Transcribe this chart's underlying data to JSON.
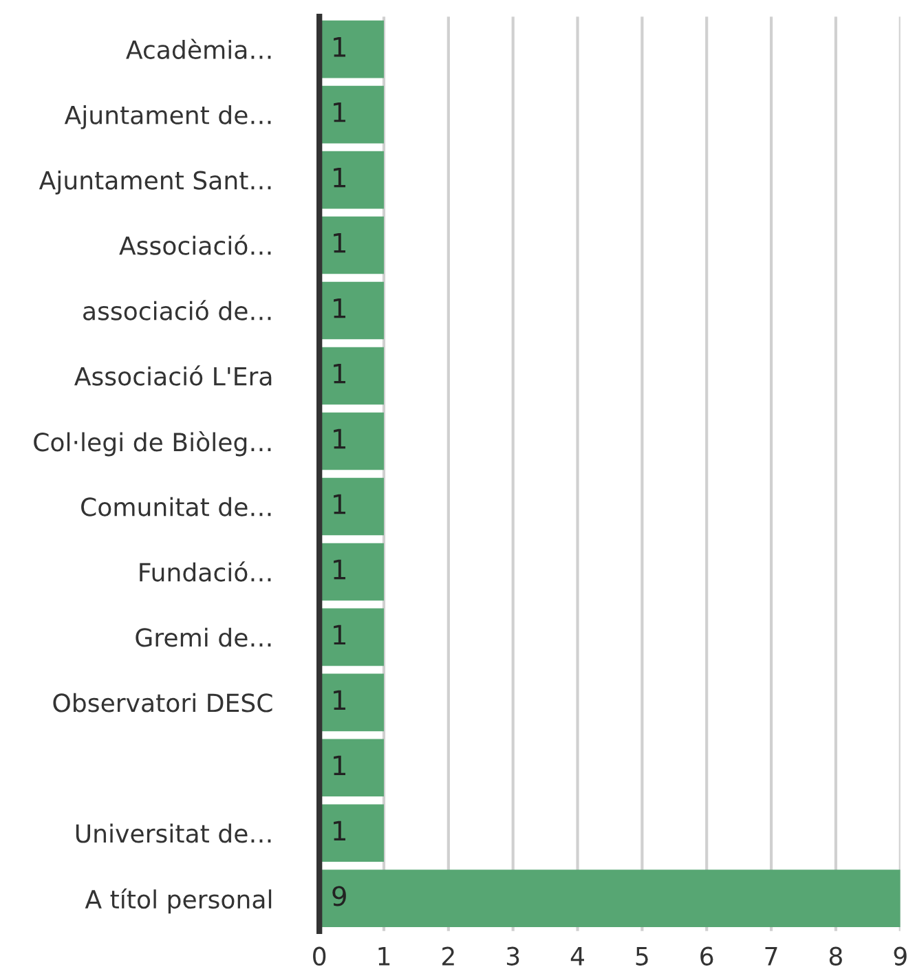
{
  "chart_data": {
    "type": "bar",
    "orientation": "horizontal",
    "categories": [
      "Acadèmia…",
      "Ajuntament de…",
      "Ajuntament Sant…",
      "Associació…",
      "associació de…",
      "Associació L'Era",
      "Col·legi de Biòleg…",
      "Comunitat de…",
      "Fundació…",
      "Gremi de…",
      "Observatori DESC",
      null,
      "Universitat de…",
      "A títol personal"
    ],
    "values": [
      1,
      1,
      1,
      1,
      1,
      1,
      1,
      1,
      1,
      1,
      1,
      1,
      1,
      9
    ],
    "color": "#57a673",
    "data_labels": true,
    "grid": "x",
    "xlim": [
      0,
      9
    ],
    "xticks": [
      0,
      1,
      2,
      3,
      4,
      5,
      6,
      7,
      8,
      9
    ]
  }
}
